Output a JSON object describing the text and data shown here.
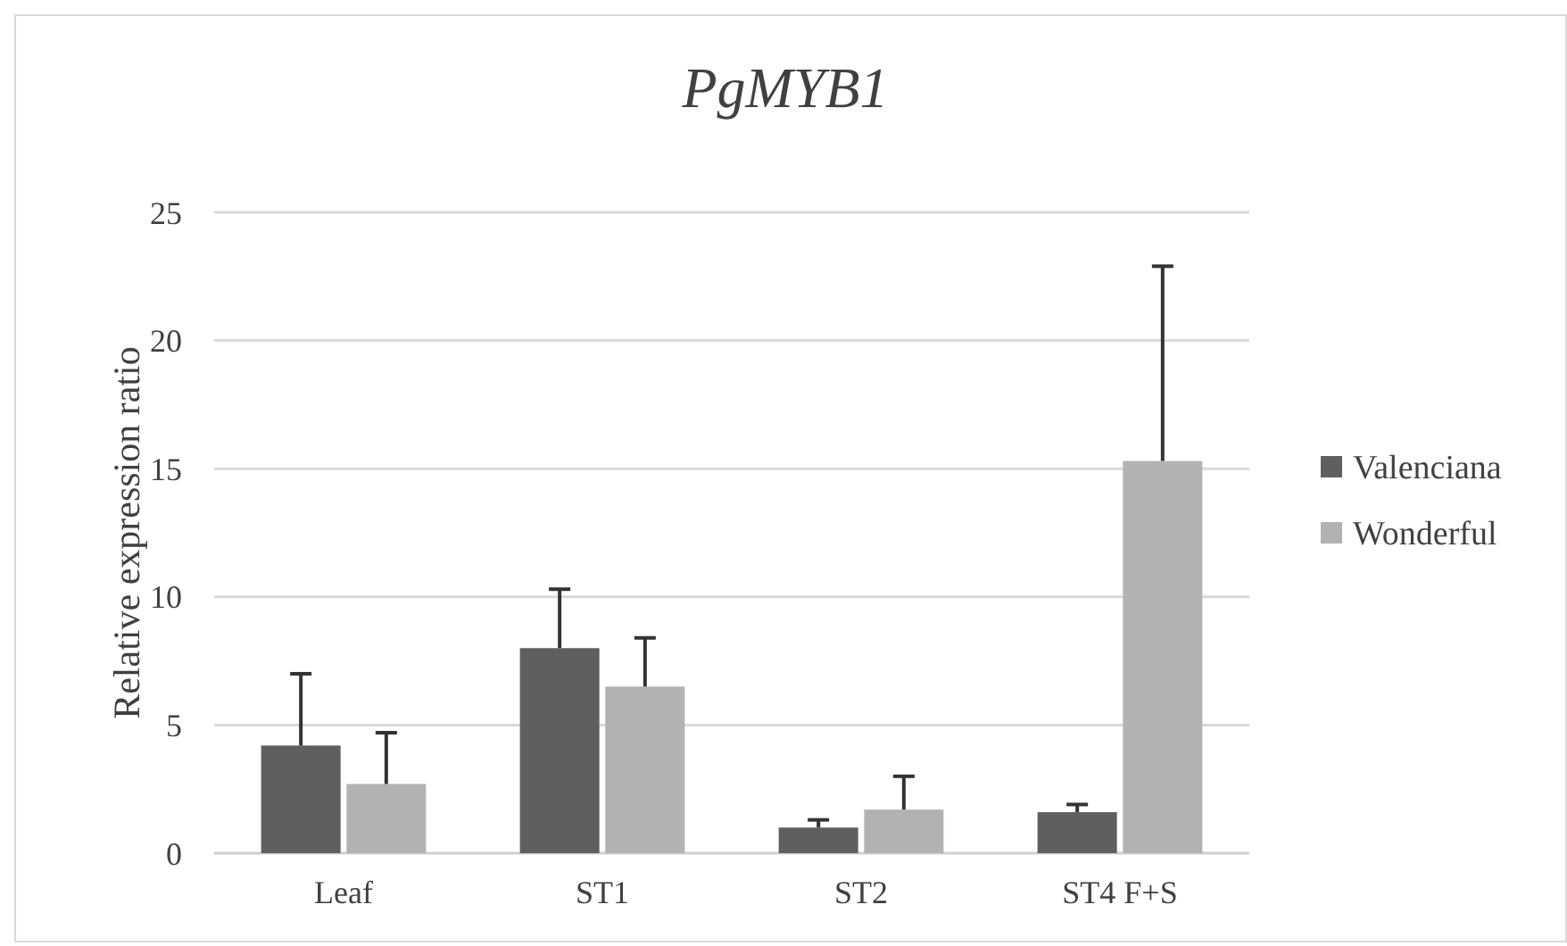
{
  "chart_data": {
    "type": "bar",
    "title": "PgMYB1",
    "ylabel": "Relative expression ratio",
    "categories": [
      "Leaf",
      "ST1",
      "ST2",
      "ST4 F+S"
    ],
    "series": [
      {
        "name": "Valenciana",
        "color": "#5f5f5f",
        "values": [
          4.2,
          8.0,
          1.0,
          1.6
        ],
        "errors": [
          [
            4.2,
            7.0
          ],
          [
            8.0,
            10.3
          ],
          [
            1.0,
            1.3
          ],
          [
            1.6,
            1.9
          ]
        ]
      },
      {
        "name": "Wonderful",
        "color": "#b2b2b2",
        "values": [
          2.7,
          6.5,
          1.7,
          15.3
        ],
        "errors": [
          [
            2.7,
            4.7
          ],
          [
            6.5,
            8.4
          ],
          [
            1.7,
            3.0
          ],
          [
            15.3,
            22.9
          ]
        ]
      }
    ],
    "ylim": [
      0,
      25
    ],
    "yticks": [
      0,
      5,
      10,
      15,
      20,
      25
    ],
    "grid": "y",
    "legend": "right"
  }
}
